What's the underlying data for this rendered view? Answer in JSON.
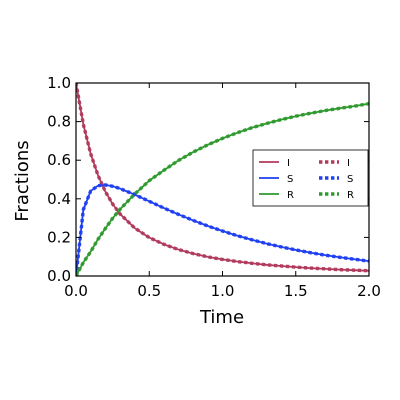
{
  "chart_data": {
    "type": "line",
    "xlabel": "Time",
    "ylabel": "Fractions",
    "xlim": [
      0.0,
      2.0
    ],
    "ylim": [
      0.0,
      1.0
    ],
    "xticks": [
      "0.0",
      "0.5",
      "1.0",
      "1.5",
      "2.0"
    ],
    "yticks": [
      "0.0",
      "0.2",
      "0.4",
      "0.6",
      "0.8",
      "1.0"
    ],
    "grid": false,
    "legend_position": "center-right",
    "x": [
      0.0,
      0.05,
      0.1,
      0.15,
      0.2,
      0.25,
      0.3,
      0.4,
      0.5,
      0.6,
      0.7,
      0.8,
      0.9,
      1.0,
      1.1,
      1.2,
      1.3,
      1.4,
      1.5,
      1.6,
      1.7,
      1.8,
      1.9,
      2.0
    ],
    "series": [
      {
        "name": "I",
        "style": "solid",
        "color": "#b03a5c",
        "values": [
          1.0,
          0.786,
          0.634,
          0.522,
          0.438,
          0.373,
          0.322,
          0.249,
          0.199,
          0.164,
          0.137,
          0.116,
          0.099,
          0.086,
          0.075,
          0.066,
          0.058,
          0.052,
          0.046,
          0.041,
          0.037,
          0.033,
          0.03,
          0.027
        ]
      },
      {
        "name": "S",
        "style": "solid",
        "color": "#1f3ff0",
        "values": [
          0.0,
          0.344,
          0.44,
          0.468,
          0.472,
          0.465,
          0.453,
          0.422,
          0.387,
          0.352,
          0.319,
          0.288,
          0.259,
          0.233,
          0.209,
          0.188,
          0.168,
          0.151,
          0.135,
          0.121,
          0.108,
          0.097,
          0.087,
          0.077
        ]
      },
      {
        "name": "R",
        "style": "solid",
        "color": "#2e9a2e",
        "values": [
          0.0,
          0.07,
          0.126,
          0.19,
          0.246,
          0.299,
          0.345,
          0.424,
          0.494,
          0.548,
          0.599,
          0.642,
          0.68,
          0.713,
          0.742,
          0.768,
          0.79,
          0.81,
          0.828,
          0.843,
          0.857,
          0.869,
          0.88,
          0.893
        ]
      },
      {
        "name": "I",
        "style": "dotted",
        "color": "#b03a5c",
        "values": [
          1.0,
          0.786,
          0.634,
          0.522,
          0.438,
          0.373,
          0.322,
          0.249,
          0.199,
          0.164,
          0.137,
          0.116,
          0.099,
          0.086,
          0.075,
          0.066,
          0.058,
          0.052,
          0.046,
          0.041,
          0.037,
          0.033,
          0.03,
          0.027
        ]
      },
      {
        "name": "S",
        "style": "dotted",
        "color": "#1f3ff0",
        "values": [
          0.0,
          0.344,
          0.44,
          0.468,
          0.472,
          0.465,
          0.453,
          0.422,
          0.387,
          0.352,
          0.319,
          0.288,
          0.259,
          0.233,
          0.209,
          0.188,
          0.168,
          0.151,
          0.135,
          0.121,
          0.108,
          0.097,
          0.087,
          0.077
        ]
      },
      {
        "name": "R",
        "style": "dotted",
        "color": "#2e9a2e",
        "values": [
          0.0,
          0.07,
          0.126,
          0.19,
          0.246,
          0.299,
          0.345,
          0.424,
          0.494,
          0.548,
          0.599,
          0.642,
          0.68,
          0.713,
          0.742,
          0.768,
          0.79,
          0.81,
          0.828,
          0.843,
          0.857,
          0.869,
          0.88,
          0.893
        ]
      }
    ]
  }
}
